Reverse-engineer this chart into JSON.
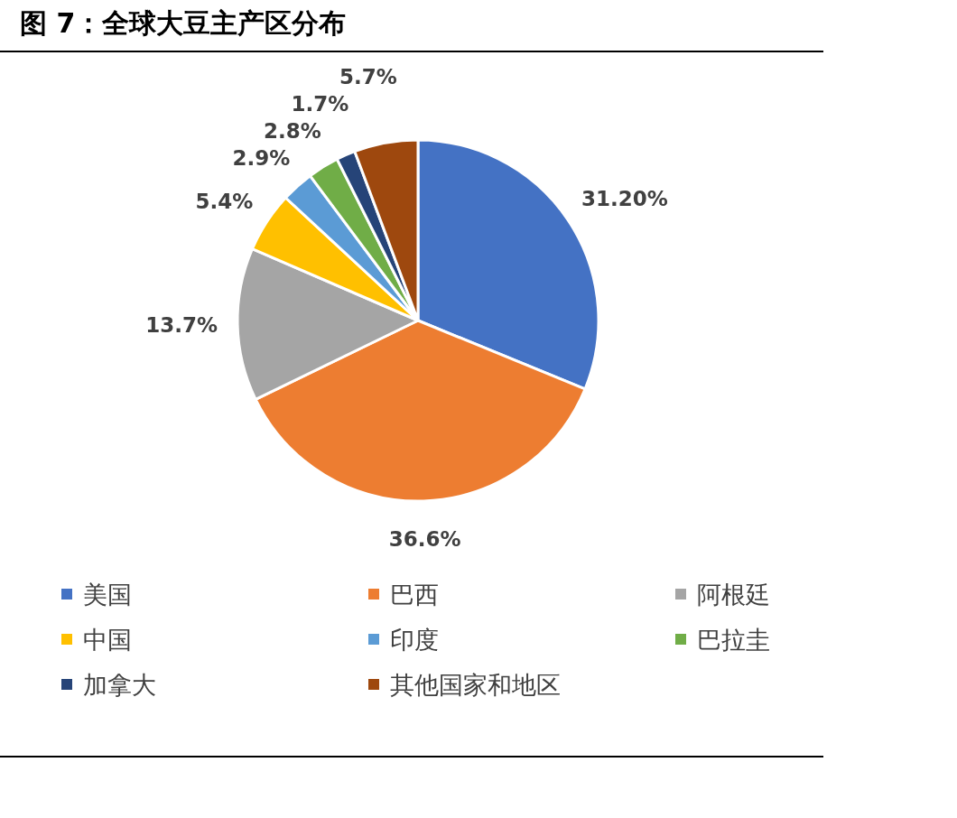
{
  "chart_data": {
    "type": "pie",
    "title": "图 7：全球大豆主产区分布",
    "categories": [
      "美国",
      "巴西",
      "阿根廷",
      "中国",
      "印度",
      "巴拉圭",
      "加拿大",
      "其他国家和地区"
    ],
    "values": [
      31.2,
      36.6,
      13.7,
      5.4,
      2.9,
      2.8,
      1.7,
      5.7
    ],
    "value_labels": [
      "31.20%",
      "36.6%",
      "13.7%",
      "5.4%",
      "2.9%",
      "2.8%",
      "1.7%",
      "5.7%"
    ],
    "colors": [
      "#4472c4",
      "#ed7d31",
      "#a5a5a5",
      "#ffc000",
      "#5b9bd5",
      "#70ad47",
      "#264478",
      "#9e480e"
    ],
    "legend": "bottom"
  }
}
